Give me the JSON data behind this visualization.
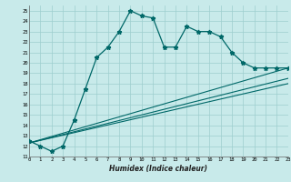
{
  "title": "",
  "xlabel": "Humidex (Indice chaleur)",
  "xlim": [
    0,
    23
  ],
  "ylim": [
    11,
    25.5
  ],
  "yticks": [
    11,
    12,
    13,
    14,
    15,
    16,
    17,
    18,
    19,
    20,
    21,
    22,
    23,
    24,
    25
  ],
  "xticks": [
    0,
    1,
    2,
    3,
    4,
    5,
    6,
    7,
    8,
    9,
    10,
    11,
    12,
    13,
    14,
    15,
    16,
    17,
    18,
    19,
    20,
    21,
    22,
    23
  ],
  "bg_color": "#c8eaea",
  "line_color": "#006868",
  "grid_color": "#9ecece",
  "main_line": {
    "x": [
      0,
      1,
      2,
      3,
      4,
      5,
      6,
      7,
      8,
      9,
      10,
      11,
      12,
      13,
      14,
      15,
      16,
      17,
      18,
      19,
      20,
      21,
      22,
      23
    ],
    "y": [
      12.5,
      12.0,
      11.5,
      12.0,
      14.5,
      17.5,
      20.5,
      21.5,
      23.0,
      25.0,
      24.5,
      24.3,
      21.5,
      21.5,
      23.5,
      23.0,
      23.0,
      22.5,
      21.0,
      20.0,
      19.5,
      19.5,
      19.5,
      19.5
    ]
  },
  "ref_lines": [
    {
      "x": [
        0,
        23
      ],
      "y": [
        12.3,
        19.5
      ]
    },
    {
      "x": [
        0,
        23
      ],
      "y": [
        12.3,
        18.5
      ]
    },
    {
      "x": [
        0,
        23
      ],
      "y": [
        12.3,
        18.0
      ]
    }
  ]
}
